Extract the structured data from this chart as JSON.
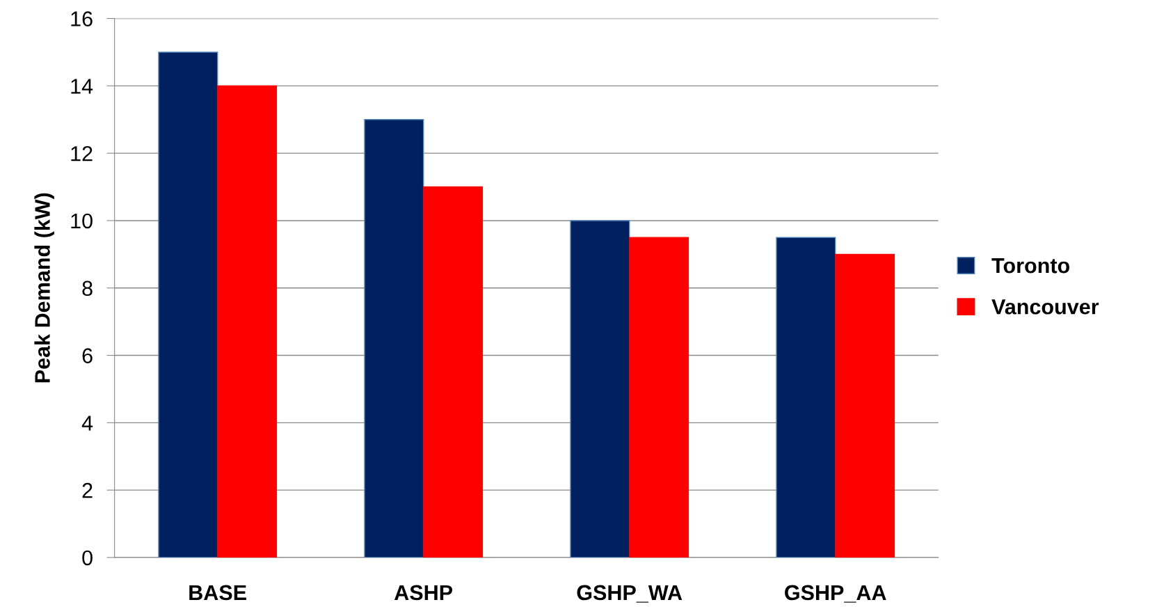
{
  "chart_data": {
    "type": "bar",
    "ylabel": "Peak Demand (kW)",
    "categories": [
      "BASE",
      "ASHP",
      "GSHP_WA",
      "GSHP_AA"
    ],
    "series": [
      {
        "name": "Toronto",
        "color": "#002060",
        "values": [
          15,
          13,
          10,
          9.5
        ]
      },
      {
        "name": "Vancouver",
        "color": "#ff0000",
        "values": [
          14,
          11,
          9.5,
          9
        ]
      }
    ],
    "ylim": [
      0,
      16
    ],
    "yticks": [
      0,
      2,
      4,
      6,
      8,
      10,
      12,
      14,
      16
    ],
    "grid": "y",
    "legend": "right"
  }
}
